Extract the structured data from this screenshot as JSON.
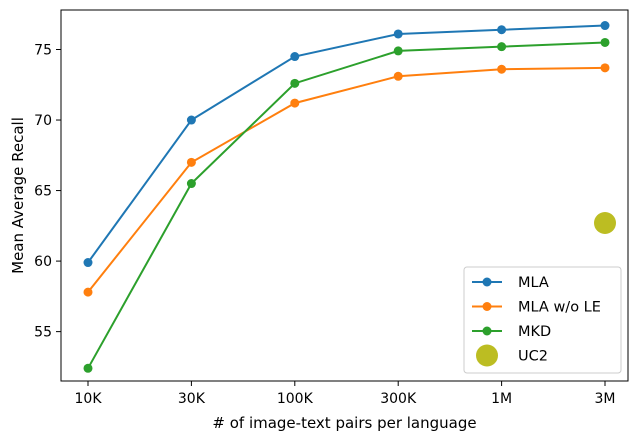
{
  "chart_data": {
    "type": "line",
    "title": "",
    "xlabel": "# of image-text pairs per language",
    "ylabel": "Mean Average Recall",
    "categories": [
      "10K",
      "30K",
      "100K",
      "300K",
      "1M",
      "3M"
    ],
    "ylim": [
      51.5,
      77.8
    ],
    "yticks": [
      55,
      60,
      65,
      70,
      75
    ],
    "grid": false,
    "legend_position": "lower-right",
    "series": [
      {
        "name": "MLA",
        "color": "#1f77b4",
        "values": [
          59.9,
          70.0,
          74.5,
          76.1,
          76.4,
          76.7
        ]
      },
      {
        "name": "MLA w/o LE",
        "color": "#ff7f0e",
        "values": [
          57.8,
          67.0,
          71.2,
          73.1,
          73.6,
          73.7
        ]
      },
      {
        "name": "MKD",
        "color": "#2ca02c",
        "values": [
          52.4,
          65.5,
          72.6,
          74.9,
          75.2,
          75.5
        ]
      }
    ],
    "points": [
      {
        "name": "UC2",
        "color": "#bcbd22",
        "category": "3M",
        "value": 62.7
      }
    ]
  }
}
